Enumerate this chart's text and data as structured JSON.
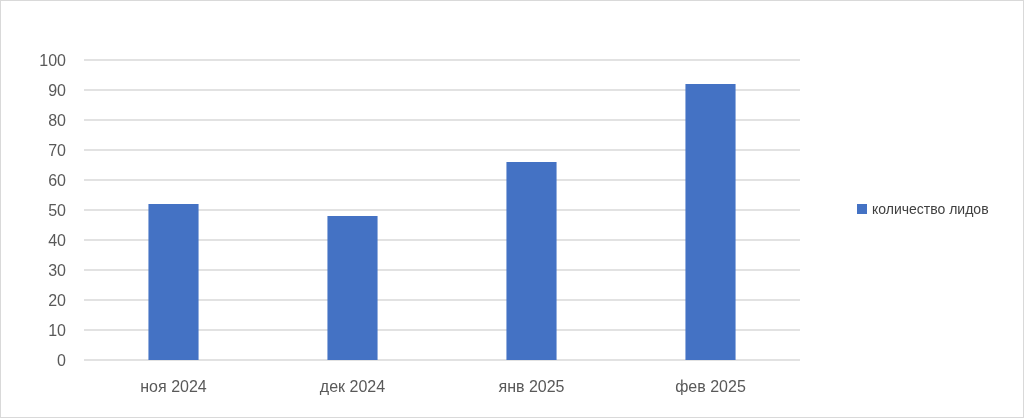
{
  "chart_data": {
    "type": "bar",
    "categories": [
      "ноя 2024",
      "дек 2024",
      "янв 2025",
      "фев 2025"
    ],
    "series": [
      {
        "name": "количество лидов",
        "color": "#4472c4",
        "values": [
          52,
          48,
          66,
          92
        ]
      }
    ],
    "ylim": [
      0,
      100
    ],
    "yticks": [
      0,
      10,
      20,
      30,
      40,
      50,
      60,
      70,
      80,
      90,
      100
    ],
    "grid": "y",
    "legend": "right"
  }
}
